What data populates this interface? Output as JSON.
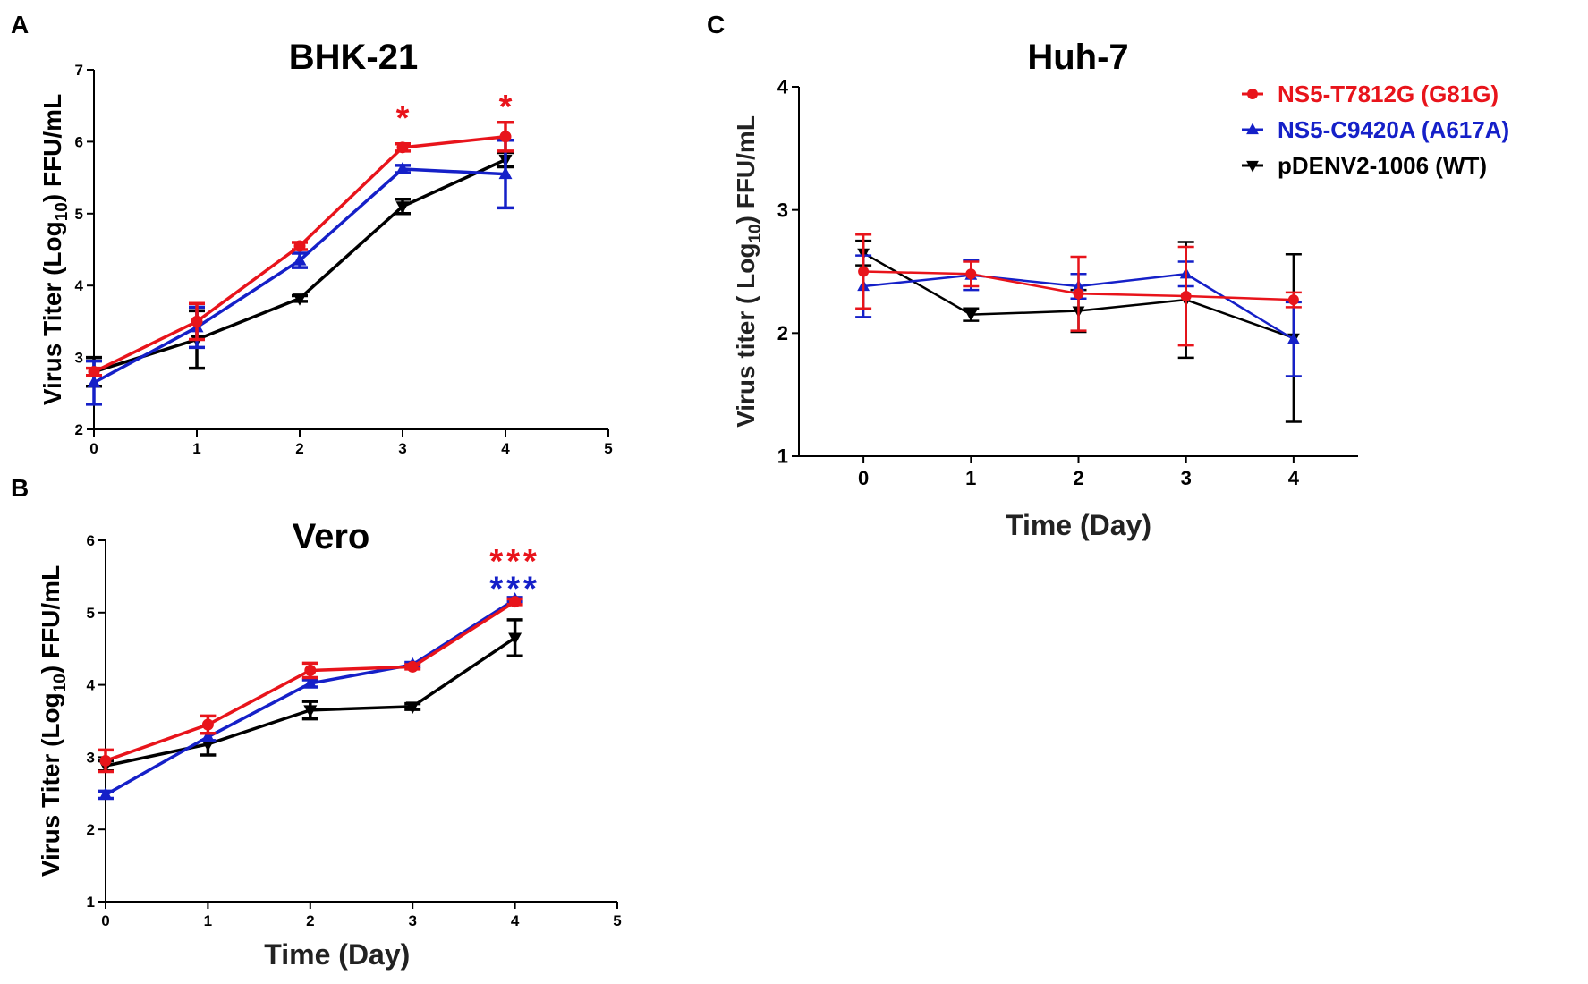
{
  "panels": {
    "A": "A",
    "B": "B",
    "C": "C"
  },
  "legend": [
    {
      "label": "NS5-T7812G (G81G)",
      "color": "#e8141b",
      "marker": "circle"
    },
    {
      "label": "NS5-C9420A (A617A)",
      "color": "#1520c8",
      "marker": "triangle-up"
    },
    {
      "label": "pDENV2-1006 (WT)",
      "color": "#000000",
      "marker": "triangle-down"
    }
  ],
  "chart_data": [
    {
      "panel": "A",
      "type": "line",
      "title": "BHK-21",
      "xlabel": "",
      "ylabel_parts": [
        "Virus Titer (Log",
        "10",
        ") FFU/mL"
      ],
      "x": [
        0,
        1,
        2,
        3,
        4
      ],
      "xlim": [
        0,
        5
      ],
      "xticks": [
        "0",
        "1",
        "2",
        "3",
        "4",
        "5"
      ],
      "ylim": [
        2,
        7
      ],
      "yticks": [
        "2",
        "3",
        "4",
        "5",
        "6",
        "7"
      ],
      "series": [
        {
          "name": "NS5-T7812G (G81G)",
          "values": [
            2.8,
            3.5,
            4.55,
            5.92,
            6.07
          ],
          "err": [
            0.05,
            0.25,
            0.05,
            0.05,
            0.2
          ]
        },
        {
          "name": "NS5-C9420A (A617A)",
          "values": [
            2.65,
            3.42,
            4.35,
            5.62,
            5.55
          ],
          "err": [
            0.3,
            0.28,
            0.1,
            0.05,
            0.47
          ]
        },
        {
          "name": "pDENV2-1006 (WT)",
          "values": [
            2.8,
            3.25,
            3.82,
            5.1,
            5.75
          ],
          "err": [
            0.2,
            0.4,
            0.04,
            0.1,
            0.1
          ]
        }
      ],
      "annotations": [
        {
          "text": "*",
          "x": 3,
          "y": 6.35,
          "color": "#e8141b"
        },
        {
          "text": "*",
          "x": 4,
          "y": 6.5,
          "color": "#e8141b"
        }
      ]
    },
    {
      "panel": "B",
      "type": "line",
      "title": "Vero",
      "xlabel": "Time (Day)",
      "ylabel_parts": [
        "Virus Titer (Log",
        "10",
        ") FFU/mL"
      ],
      "x": [
        0,
        1,
        2,
        3,
        4
      ],
      "xlim": [
        0,
        5
      ],
      "xticks": [
        "0",
        "1",
        "2",
        "3",
        "4",
        "5"
      ],
      "ylim": [
        1,
        6
      ],
      "yticks": [
        "1",
        "2",
        "3",
        "4",
        "5",
        "6"
      ],
      "series": [
        {
          "name": "NS5-T7812G (G81G)",
          "values": [
            2.95,
            3.45,
            4.2,
            4.25,
            5.15
          ],
          "err": [
            0.15,
            0.12,
            0.1,
            0.03,
            0.04
          ]
        },
        {
          "name": "NS5-C9420A (A617A)",
          "values": [
            2.48,
            3.28,
            4.02,
            4.28,
            5.18
          ],
          "err": [
            0.05,
            0.05,
            0.05,
            0.03,
            0.03
          ]
        },
        {
          "name": "pDENV2-1006 (WT)",
          "values": [
            2.88,
            3.18,
            3.65,
            3.7,
            4.65
          ],
          "err": [
            0.07,
            0.15,
            0.12,
            0.04,
            0.25
          ]
        }
      ],
      "annotations": [
        {
          "text": "***",
          "x": 4,
          "y": 5.73,
          "color": "#e8141b"
        },
        {
          "text": "***",
          "x": 4,
          "y": 5.35,
          "color": "#1520c8"
        }
      ]
    },
    {
      "panel": "C",
      "type": "line",
      "title": "Huh-7",
      "xlabel": "Time (Day)",
      "ylabel_parts": [
        "Virus titer ( Log",
        "10",
        ") FFU/mL"
      ],
      "x": [
        0,
        1,
        2,
        3,
        4
      ],
      "xlim": [
        -0.6,
        4.6
      ],
      "xticks": [
        "0",
        "1",
        "2",
        "3",
        "4"
      ],
      "ylim": [
        1,
        4
      ],
      "yticks": [
        "1",
        "2",
        "3",
        "4"
      ],
      "series": [
        {
          "name": "NS5-T7812G (G81G)",
          "values": [
            2.5,
            2.48,
            2.32,
            2.3,
            2.27
          ],
          "err": [
            0.3,
            0.1,
            0.3,
            0.4,
            0.06
          ]
        },
        {
          "name": "NS5-C9420A (A617A)",
          "values": [
            2.38,
            2.47,
            2.38,
            2.48,
            1.95
          ],
          "err": [
            0.25,
            0.12,
            0.1,
            0.1,
            0.3
          ]
        },
        {
          "name": "pDENV2-1006 (WT)",
          "values": [
            2.65,
            2.15,
            2.18,
            2.27,
            1.96
          ],
          "err": [
            0.1,
            0.05,
            0.17,
            0.47,
            0.68
          ]
        }
      ],
      "annotations": []
    }
  ]
}
